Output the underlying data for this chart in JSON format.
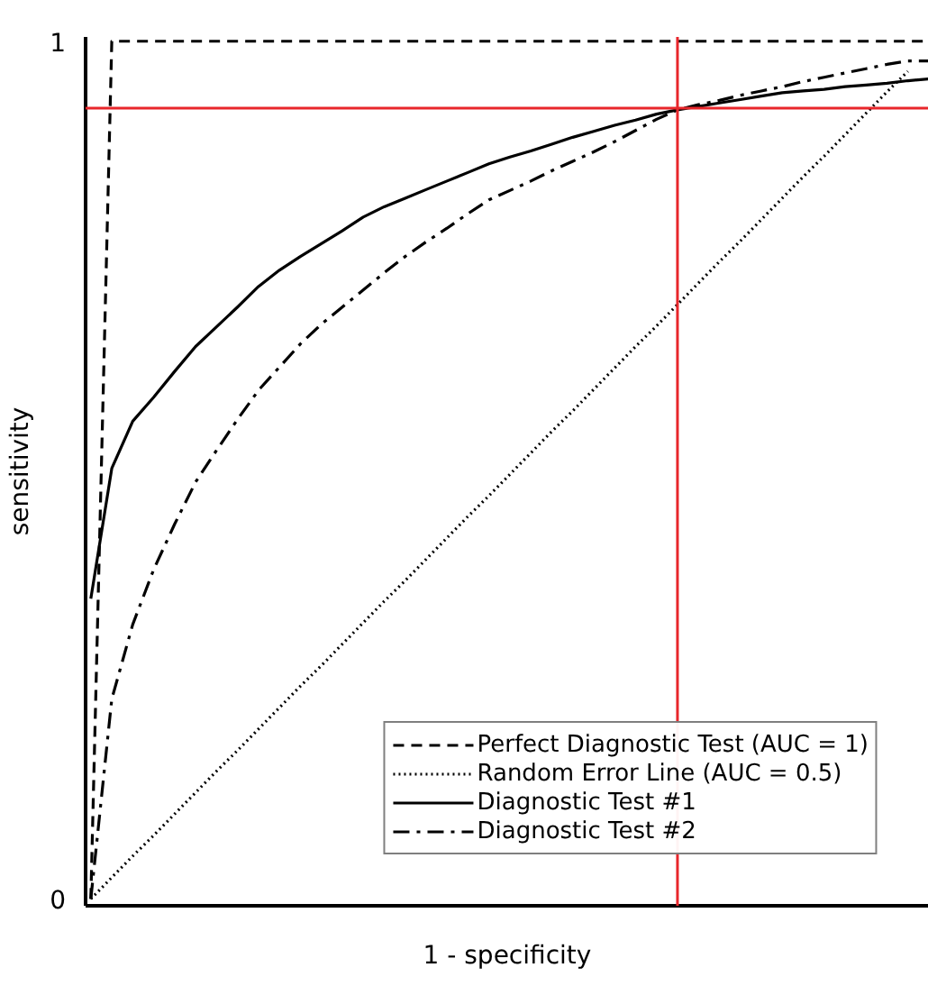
{
  "chart_data": {
    "type": "line",
    "xlabel": "1 - specificity",
    "ylabel": "sensitivity",
    "ylim": [
      -0.008,
      1.005
    ],
    "yticks": [
      0,
      1
    ],
    "legend": "bottom right",
    "marker": "none",
    "categories": [
      null,
      null,
      null,
      null,
      null,
      null,
      null,
      null,
      null,
      null,
      null,
      null,
      null,
      null,
      null,
      null,
      null,
      null,
      null,
      null,
      null,
      null,
      null,
      null,
      null,
      null,
      null,
      null,
      null,
      null,
      null,
      null,
      null,
      null,
      null,
      null,
      null,
      null,
      null,
      null,
      null
    ],
    "series": [
      {
        "name": "Perfect Diagnostic Test (AUC = 1)",
        "color": "#000000",
        "line_style": "dashed",
        "values": [
          0,
          1,
          1,
          1,
          1,
          1,
          1,
          1,
          1,
          1,
          1,
          1,
          1,
          1,
          1,
          1,
          1,
          1,
          1,
          1,
          1,
          1,
          1,
          1,
          1,
          1,
          1,
          1,
          1,
          1,
          1,
          1,
          1,
          1,
          1,
          1,
          1,
          1,
          1,
          1,
          1
        ]
      },
      {
        "name": "Random Error Line (AUC = 0.5)",
        "color": "#000000",
        "line_style": "dotted",
        "values": [
          0,
          0.025,
          0.05,
          0.074,
          0.099,
          0.124,
          0.149,
          0.173,
          0.198,
          0.223,
          0.248,
          0.272,
          0.297,
          0.322,
          0.347,
          0.371,
          0.396,
          0.421,
          0.446,
          0.47,
          0.495,
          0.52,
          0.545,
          0.569,
          0.594,
          0.619,
          0.644,
          0.668,
          0.693,
          0.718,
          0.743,
          0.767,
          0.792,
          0.817,
          0.842,
          0.866,
          0.891,
          0.916,
          0.941,
          0.965,
          null
        ]
      },
      {
        "name": "Diagnostic Test #1",
        "color": "#000000",
        "line_style": "solid",
        "values": [
          0.35,
          0.502,
          0.557,
          0.585,
          0.615,
          0.644,
          0.667,
          0.69,
          0.714,
          0.733,
          0.749,
          0.764,
          0.779,
          0.795,
          0.807,
          0.817,
          0.827,
          0.837,
          0.847,
          0.857,
          0.865,
          0.872,
          0.88,
          0.888,
          0.895,
          0.902,
          0.908,
          0.915,
          0.92,
          0.924,
          0.928,
          0.932,
          0.936,
          0.94,
          0.942,
          0.944,
          0.947,
          0.949,
          0.951,
          0.954,
          0.956
        ]
      },
      {
        "name": "Diagnostic Test #2",
        "color": "#000000",
        "line_style": "dashdot",
        "values": [
          0,
          0.233,
          0.32,
          0.384,
          0.437,
          0.486,
          0.523,
          0.559,
          0.593,
          0.62,
          0.647,
          0.67,
          0.69,
          0.71,
          0.73,
          0.749,
          0.766,
          0.782,
          0.799,
          0.815,
          0.826,
          0.837,
          0.849,
          0.86,
          0.871,
          0.883,
          0.896,
          0.909,
          0.92,
          0.926,
          0.931,
          0.937,
          0.942,
          0.947,
          0.953,
          0.958,
          0.963,
          0.968,
          0.973,
          0.977,
          0.977
        ]
      }
    ],
    "ref_lines": [
      {
        "axis": "y",
        "value": 0.922,
        "color": "#e8262b"
      }
    ]
  }
}
